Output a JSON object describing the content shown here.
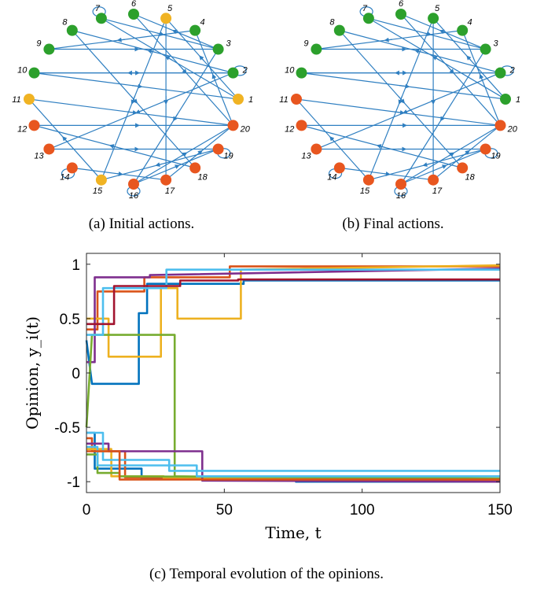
{
  "captions": {
    "a": "(a) Initial actions.",
    "b": "(b) Final actions.",
    "c": "(c) Temporal evolution of the opinions."
  },
  "colors": {
    "green": "#2ca02c",
    "orange": "#e8561f",
    "yellow": "#f0b323",
    "edge": "#2f7fc1"
  },
  "graph_data": {
    "node_labels": [
      "1",
      "2",
      "3",
      "4",
      "5",
      "6",
      "7",
      "8",
      "9",
      "10",
      "11",
      "12",
      "13",
      "14",
      "15",
      "16",
      "17",
      "18",
      "19",
      "20"
    ],
    "self_loops": [
      "2",
      "7",
      "14",
      "16",
      "19"
    ],
    "edges": [
      [
        2,
        10
      ],
      [
        2,
        13
      ],
      [
        2,
        8
      ],
      [
        3,
        16
      ],
      [
        3,
        6
      ],
      [
        4,
        9
      ],
      [
        5,
        17
      ],
      [
        5,
        15
      ],
      [
        6,
        20
      ],
      [
        7,
        3
      ],
      [
        8,
        18
      ],
      [
        9,
        3
      ],
      [
        10,
        2
      ],
      [
        10,
        1
      ],
      [
        11,
        20
      ],
      [
        12,
        20
      ],
      [
        13,
        19
      ],
      [
        14,
        17
      ],
      [
        15,
        11
      ],
      [
        16,
        20
      ],
      [
        16,
        19
      ],
      [
        17,
        20
      ],
      [
        18,
        12
      ],
      [
        19,
        15
      ],
      [
        20,
        4
      ],
      [
        1,
        5
      ],
      [
        1,
        7
      ]
    ],
    "initial_actions": [
      "yellow",
      "green",
      "green",
      "green",
      "yellow",
      "green",
      "green",
      "green",
      "green",
      "green",
      "yellow",
      "orange",
      "orange",
      "orange",
      "yellow",
      "orange",
      "orange",
      "orange",
      "orange",
      "orange"
    ],
    "final_actions": [
      "green",
      "green",
      "green",
      "green",
      "green",
      "green",
      "green",
      "green",
      "green",
      "green",
      "orange",
      "orange",
      "orange",
      "orange",
      "orange",
      "orange",
      "orange",
      "orange",
      "orange",
      "orange"
    ]
  },
  "chart_data": {
    "type": "line",
    "xlabel": "Time, t",
    "ylabel": "Opinion, y_i(t)",
    "xlim": [
      0,
      150
    ],
    "ylim": [
      -1.1,
      1.1
    ],
    "xticks": [
      "0",
      "50",
      "100",
      "150"
    ],
    "yticks": [
      "1",
      "0.5",
      "0",
      "-0.5",
      "-1"
    ],
    "series": [
      {
        "color": "#0072bd",
        "points": [
          [
            0,
            0.3
          ],
          [
            2,
            -0.1
          ],
          [
            19,
            -0.1
          ],
          [
            19,
            0.55
          ],
          [
            22,
            0.55
          ],
          [
            22,
            0.82
          ],
          [
            57,
            0.82
          ],
          [
            57,
            0.85
          ],
          [
            150,
            0.85
          ]
        ]
      },
      {
        "color": "#d95319",
        "points": [
          [
            0,
            0.4
          ],
          [
            4,
            0.4
          ],
          [
            4,
            0.75
          ],
          [
            21,
            0.75
          ],
          [
            21,
            0.88
          ],
          [
            52,
            0.88
          ],
          [
            52,
            0.98
          ],
          [
            150,
            0.98
          ]
        ]
      },
      {
        "color": "#edb120",
        "points": [
          [
            0,
            0.5
          ],
          [
            8,
            0.5
          ],
          [
            8,
            0.15
          ],
          [
            27,
            0.15
          ],
          [
            27,
            0.78
          ],
          [
            33,
            0.78
          ],
          [
            33,
            0.5
          ],
          [
            56,
            0.5
          ],
          [
            56,
            0.95
          ],
          [
            150,
            0.99
          ]
        ]
      },
      {
        "color": "#7e2f8e",
        "points": [
          [
            0,
            0.1
          ],
          [
            3,
            0.1
          ],
          [
            3,
            0.88
          ],
          [
            23,
            0.88
          ],
          [
            23,
            0.9
          ],
          [
            150,
            0.96
          ]
        ]
      },
      {
        "color": "#77ac30",
        "points": [
          [
            0,
            -0.5
          ],
          [
            2,
            0.35
          ],
          [
            32,
            0.35
          ],
          [
            32,
            -0.95
          ],
          [
            150,
            -0.98
          ]
        ]
      },
      {
        "color": "#4dbeee",
        "points": [
          [
            0,
            0.35
          ],
          [
            6,
            0.35
          ],
          [
            6,
            0.78
          ],
          [
            29,
            0.78
          ],
          [
            29,
            0.95
          ],
          [
            150,
            0.95
          ]
        ]
      },
      {
        "color": "#a2142f",
        "points": [
          [
            0,
            0.45
          ],
          [
            10,
            0.45
          ],
          [
            10,
            0.8
          ],
          [
            34,
            0.8
          ],
          [
            34,
            0.85
          ],
          [
            55,
            0.85
          ],
          [
            55,
            0.86
          ],
          [
            150,
            0.86
          ]
        ]
      },
      {
        "color": "#0072bd",
        "points": [
          [
            0,
            -0.55
          ],
          [
            3,
            -0.55
          ],
          [
            3,
            -0.88
          ],
          [
            20,
            -0.88
          ],
          [
            20,
            -0.97
          ],
          [
            76,
            -0.97
          ],
          [
            76,
            -1.0
          ],
          [
            150,
            -1.0
          ]
        ]
      },
      {
        "color": "#d95319",
        "points": [
          [
            0,
            -0.6
          ],
          [
            2,
            -0.6
          ],
          [
            2,
            -0.72
          ],
          [
            14,
            -0.72
          ],
          [
            14,
            -0.96
          ],
          [
            50,
            -0.96
          ],
          [
            50,
            -0.98
          ],
          [
            150,
            -0.99
          ]
        ]
      },
      {
        "color": "#edb120",
        "points": [
          [
            0,
            -0.7
          ],
          [
            9,
            -0.7
          ],
          [
            9,
            -0.95
          ],
          [
            28,
            -0.95
          ],
          [
            28,
            -0.97
          ],
          [
            150,
            -0.98
          ]
        ]
      },
      {
        "color": "#7e2f8e",
        "points": [
          [
            0,
            -0.65
          ],
          [
            8,
            -0.65
          ],
          [
            8,
            -0.72
          ],
          [
            42,
            -0.72
          ],
          [
            42,
            -0.99
          ],
          [
            150,
            -1.0
          ]
        ]
      },
      {
        "color": "#77ac30",
        "points": [
          [
            0,
            -0.75
          ],
          [
            4,
            -0.75
          ],
          [
            4,
            -0.92
          ],
          [
            12,
            -0.92
          ],
          [
            12,
            -0.95
          ],
          [
            150,
            -0.97
          ]
        ]
      },
      {
        "color": "#4dbeee",
        "points": [
          [
            0,
            -0.55
          ],
          [
            6,
            -0.55
          ],
          [
            6,
            -0.8
          ],
          [
            30,
            -0.8
          ],
          [
            30,
            -0.9
          ],
          [
            150,
            -0.9
          ]
        ]
      },
      {
        "color": "#4dbeee",
        "points": [
          [
            0,
            -0.68
          ],
          [
            4,
            -0.68
          ],
          [
            4,
            -0.85
          ],
          [
            40,
            -0.85
          ],
          [
            40,
            -0.95
          ],
          [
            150,
            -0.95
          ]
        ]
      },
      {
        "color": "#d95319",
        "points": [
          [
            0,
            -0.72
          ],
          [
            12,
            -0.72
          ],
          [
            12,
            -0.98
          ],
          [
            150,
            -0.98
          ]
        ]
      }
    ]
  }
}
